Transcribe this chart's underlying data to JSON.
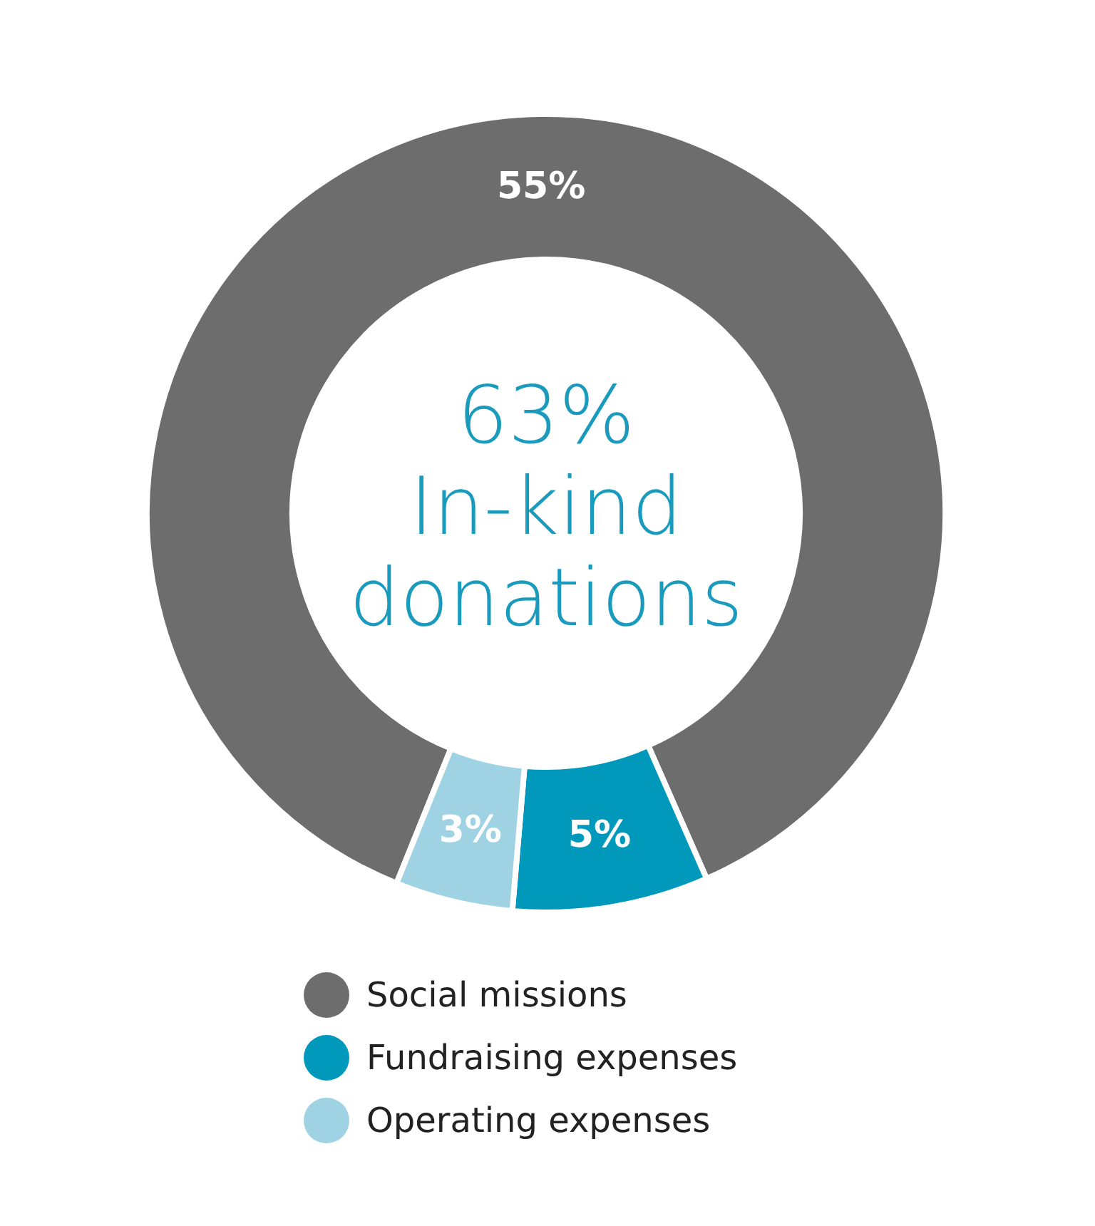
{
  "chart_data": {
    "type": "donut",
    "categories": [
      "Social missions",
      "Fundraising expenses",
      "Operating expenses"
    ],
    "values": [
      55,
      5,
      3
    ],
    "colors": [
      "#6d6d6d",
      "#0099bb",
      "#9fd3e3"
    ],
    "value_labels": [
      "55%",
      "5%",
      "3%"
    ],
    "annotations": [
      "63%",
      "In-kind donations"
    ],
    "legend": "bottom"
  }
}
